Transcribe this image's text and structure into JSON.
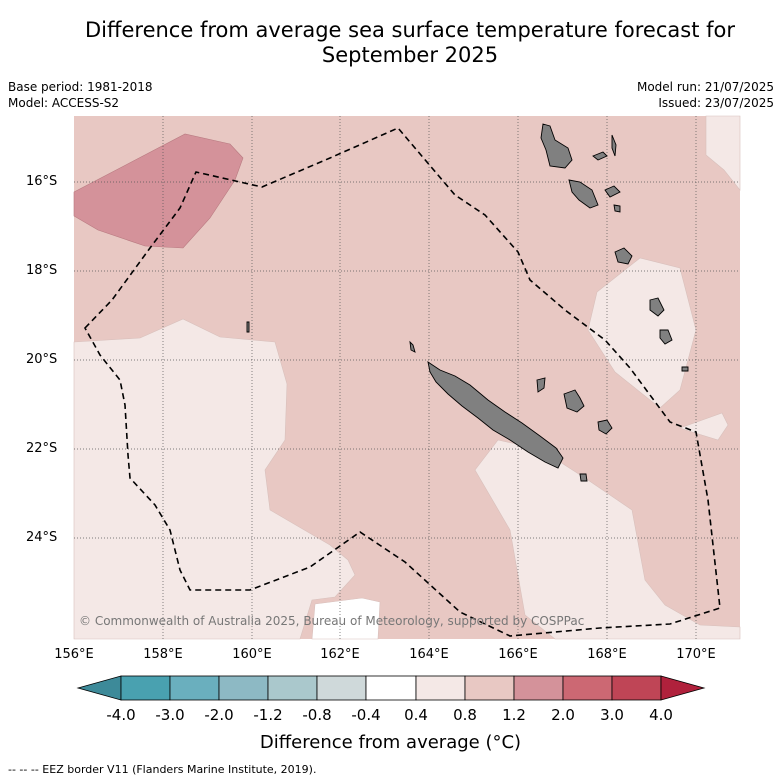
{
  "title_line1": "Difference from average sea surface temperature forecast for",
  "title_line2": "September 2025",
  "base_period": "Base period: 1981-2018",
  "model": "Model: ACCESS-S2",
  "model_run": "Model run: 21/07/2025",
  "issued": "Issued: 23/07/2025",
  "copyright": "© Commonwealth of Australia 2025, Bureau of Meteorology, supported by COSPPac",
  "lat_labels": [
    "16°S",
    "18°S",
    "20°S",
    "22°S",
    "24°S"
  ],
  "lon_labels": [
    "156°E",
    "158°E",
    "160°E",
    "162°E",
    "164°E",
    "166°E",
    "168°E",
    "170°E"
  ],
  "colorbar": {
    "ticks": [
      "-4.0",
      "-3.0",
      "-2.0",
      "-1.2",
      "-0.8",
      "-0.4",
      "0.4",
      "0.8",
      "1.2",
      "2.0",
      "3.0",
      "4.0"
    ],
    "colors": [
      "#3d8a99",
      "#49a1b0",
      "#6aafbe",
      "#8db9c4",
      "#aac8cc",
      "#cfd9da",
      "#ffffff",
      "#f4e8e6",
      "#e8c8c3",
      "#d4929a",
      "#cc6873",
      "#bf4556",
      "#b0213c"
    ],
    "label": "Difference from average (°C)"
  },
  "legend_footnote": "--  --  -- EEZ border V11 (Flanders Marine Institute, 2019).",
  "map_colors": {
    "anomaly_0.8_1.2": "#e8c8c3",
    "anomaly_0.4_0.8": "#f4e8e6",
    "anomaly_1.2_2.0": "#d4929a",
    "land": "#808080"
  }
}
